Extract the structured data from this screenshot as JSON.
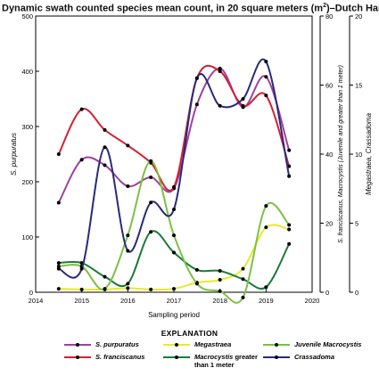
{
  "chart_data": {
    "type": "line",
    "title_prefix": "Dynamic swath counted species mean count, in 20 square meters (m",
    "title_sup": "2",
    "title_suffix": ")–Dutch Harbor",
    "xlabel": "Sampling period",
    "ylabel_left": "S. purpuratus",
    "ylabel_mid": "S. franciscanus, Macrocystis (Juvenile and greater than 1 meter)",
    "ylabel_right": "Megastraea, Crassadoma",
    "xlim": [
      2014,
      2020
    ],
    "x_ticks": [
      2014,
      2015,
      2016,
      2017,
      2018,
      2019,
      2020
    ],
    "y_left_lim": [
      0,
      500
    ],
    "y_left_ticks": [
      0,
      100,
      200,
      300,
      400,
      500
    ],
    "y_mid_lim": [
      0,
      80
    ],
    "y_mid_ticks": [
      0,
      20,
      40,
      60,
      80
    ],
    "y_right_lim": [
      0,
      20
    ],
    "y_right_ticks": [
      0,
      5,
      10,
      15,
      20
    ],
    "series": [
      {
        "name": "S. purpuratus",
        "axis": "left",
        "color": "#a040a0",
        "x": [
          2014.5,
          2015,
          2015.5,
          2016,
          2016.5,
          2017,
          2017.5,
          2018,
          2018.5,
          2019,
          2019.5
        ],
        "y": [
          162,
          240,
          230,
          192,
          208,
          188,
          340,
          405,
          335,
          390,
          257
        ]
      },
      {
        "name": "S. franciscanus",
        "axis": "mid",
        "color": "#d42030",
        "x": [
          2014.5,
          2015,
          2015.5,
          2016,
          2016.5,
          2017,
          2017.5,
          2018,
          2018.5,
          2019,
          2019.5
        ],
        "y": [
          40,
          53,
          47,
          42.5,
          37.5,
          30.5,
          62,
          64,
          54,
          57,
          36.5
        ]
      },
      {
        "name": "Megastraea",
        "axis": "right",
        "color": "#e8e830",
        "x": [
          2014.5,
          2015,
          2015.5,
          2016,
          2016.5,
          2017,
          2017.5,
          2018,
          2018.5,
          2019,
          2019.5
        ],
        "y": [
          0.25,
          0.2,
          0.2,
          0.3,
          0.2,
          0.25,
          0.7,
          0.9,
          1.7,
          4.7,
          4.55
        ]
      },
      {
        "name": "Macrocystis greater than 1 meter",
        "axis": "mid",
        "color": "#1a7a3a",
        "x": [
          2014.5,
          2015,
          2015.5,
          2016,
          2016.5,
          2017,
          2017.5,
          2018,
          2018.5,
          2019,
          2019.5
        ],
        "y": [
          8.5,
          8.5,
          4.5,
          2.5,
          17.5,
          11.5,
          6.5,
          6.2,
          3.8,
          1.5,
          14
        ]
      },
      {
        "name": "Juvenile Macrocystis",
        "axis": "mid",
        "color": "#7cc142",
        "x": [
          2014.5,
          2015,
          2015.5,
          2016,
          2016.5,
          2017,
          2017.5,
          2018,
          2018.5,
          2019,
          2019.5
        ],
        "y": [
          7.5,
          7.5,
          1.0,
          16.5,
          38,
          16.5,
          2.5,
          0.3,
          -1.5,
          25,
          19.5
        ]
      },
      {
        "name": "Crassadoma",
        "axis": "right",
        "color": "#2a2a7a",
        "x": [
          2014.5,
          2015,
          2015.5,
          2016,
          2016.5,
          2017,
          2017.5,
          2018,
          2018.5,
          2019,
          2019.5
        ],
        "y": [
          1.7,
          1.7,
          10.5,
          3.0,
          6.5,
          6.0,
          15.5,
          13.5,
          14.0,
          16.7,
          8.4
        ]
      }
    ]
  },
  "legend": {
    "heading": "EXPLANATION",
    "items": [
      {
        "label": "S. purpuratus",
        "color": "#a040a0",
        "italic": true
      },
      {
        "label": "Megastraea",
        "color": "#e8e830",
        "italic": true
      },
      {
        "label": "Juvenile Macrocystis",
        "color": "#7cc142",
        "italic": true
      },
      {
        "label": "S. franciscanus",
        "color": "#d42030",
        "italic": true
      },
      {
        "label": "Macrocystis greater than 1 meter",
        "color": "#1a7a3a",
        "italic": false
      },
      {
        "label": "Crassadoma",
        "color": "#2a2a7a",
        "italic": true
      }
    ]
  }
}
